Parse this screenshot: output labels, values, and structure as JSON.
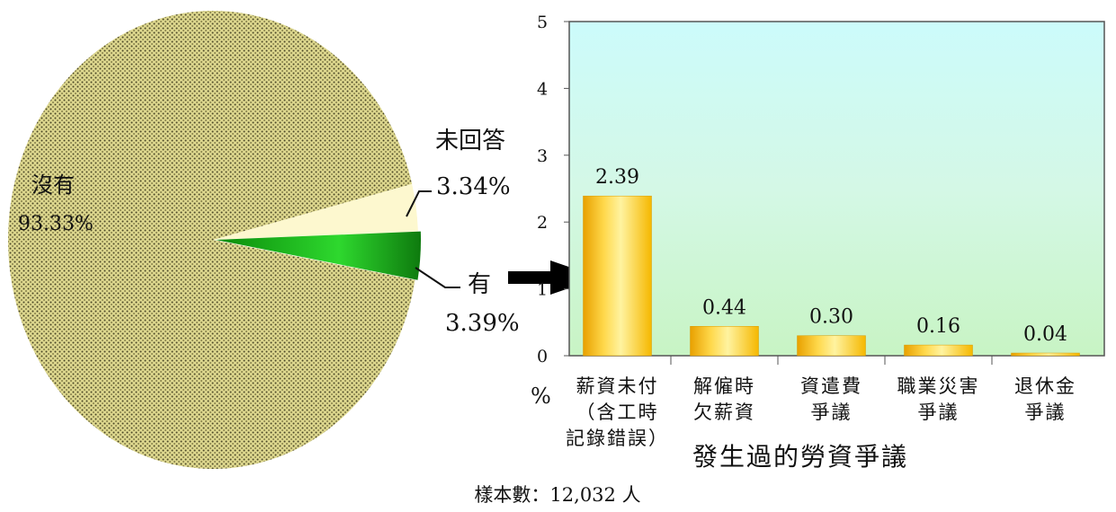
{
  "chart_data": [
    {
      "type": "pie",
      "slices": [
        {
          "label": "沒有",
          "value": 93.33,
          "value_label": "93.33%",
          "color": "#d9d48a"
        },
        {
          "label": "未回答",
          "value": 3.34,
          "value_label": "3.34%",
          "color": "#fdf8cf"
        },
        {
          "label": "有",
          "value": 3.39,
          "value_label": "3.39%",
          "color": "#1bb01b"
        }
      ]
    },
    {
      "type": "bar",
      "categories": [
        [
          "薪資未付",
          "（含工時",
          "記錄錯誤）"
        ],
        [
          "解僱時",
          "欠薪資"
        ],
        [
          "資遣費",
          "爭議"
        ],
        [
          "職業災害",
          "爭議"
        ],
        [
          "退休金",
          "爭議"
        ]
      ],
      "values": [
        2.39,
        0.44,
        0.3,
        0.16,
        0.04
      ],
      "value_labels": [
        "2.39",
        "0.44",
        "0.30",
        "0.16",
        "0.04"
      ],
      "xlabel": "發生過的勞資爭議",
      "ylabel": "%",
      "ylim": [
        0,
        5
      ],
      "yticks": [
        "0",
        "1",
        "2",
        "3",
        "4",
        "5"
      ],
      "grid": false
    }
  ],
  "footer": {
    "sample": "樣本數：12,032 人"
  }
}
